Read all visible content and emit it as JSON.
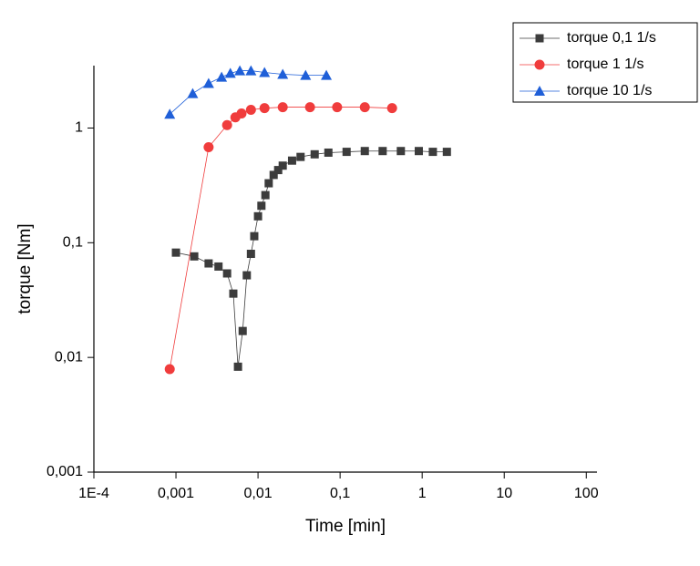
{
  "chart_data": {
    "type": "scatter-line",
    "x_label": "Time [min]",
    "y_label": "torque [Nm]",
    "x_scale": "log",
    "y_scale": "log",
    "xlim": [
      0.0001,
      135
    ],
    "ylim": [
      0.001,
      3.5
    ],
    "xticks": [
      {
        "value": 0.0001,
        "label": "1E-4"
      },
      {
        "value": 0.001,
        "label": "0,001"
      },
      {
        "value": 0.01,
        "label": "0,01"
      },
      {
        "value": 0.1,
        "label": "0,1"
      },
      1,
      10,
      100
    ],
    "yticks": [
      {
        "value": 0.001,
        "label": "0,001"
      },
      {
        "value": 0.01,
        "label": "0,01"
      },
      {
        "value": 0.1,
        "label": "0,1"
      },
      1
    ],
    "legend": "top-right",
    "series": [
      {
        "name": "torque 0,1 1/s",
        "color": "#3c3c3c",
        "marker": "square",
        "x": [
          0.001,
          0.00167,
          0.0025,
          0.0033,
          0.0042,
          0.005,
          0.0057,
          0.0065,
          0.0073,
          0.0082,
          0.009,
          0.01,
          0.011,
          0.0123,
          0.0135,
          0.0155,
          0.0176,
          0.02,
          0.026,
          0.033,
          0.049,
          0.072,
          0.12,
          0.2,
          0.33,
          0.55,
          0.91,
          1.35,
          2.0
        ],
        "values": [
          0.082,
          0.076,
          0.066,
          0.062,
          0.054,
          0.036,
          0.0083,
          0.017,
          0.052,
          0.08,
          0.114,
          0.17,
          0.21,
          0.26,
          0.33,
          0.39,
          0.43,
          0.47,
          0.52,
          0.56,
          0.59,
          0.61,
          0.62,
          0.63,
          0.63,
          0.63,
          0.63,
          0.62,
          0.62
        ]
      },
      {
        "name": "torque 1 1/s",
        "color": "#f03c3c",
        "marker": "circle",
        "x": [
          0.00084,
          0.0025,
          0.0042,
          0.0053,
          0.0063,
          0.0082,
          0.012,
          0.02,
          0.043,
          0.092,
          0.2,
          0.43
        ],
        "values": [
          0.0079,
          0.68,
          1.06,
          1.24,
          1.34,
          1.44,
          1.49,
          1.52,
          1.52,
          1.52,
          1.52,
          1.49
        ]
      },
      {
        "name": "torque 10 1/s",
        "color": "#1f5fd8",
        "marker": "triangle",
        "x": [
          0.00084,
          0.0016,
          0.0025,
          0.0036,
          0.0046,
          0.006,
          0.0082,
          0.012,
          0.02,
          0.038,
          0.068
        ],
        "values": [
          1.32,
          2.0,
          2.45,
          2.78,
          3.0,
          3.16,
          3.16,
          3.05,
          2.94,
          2.88,
          2.88
        ]
      }
    ]
  }
}
